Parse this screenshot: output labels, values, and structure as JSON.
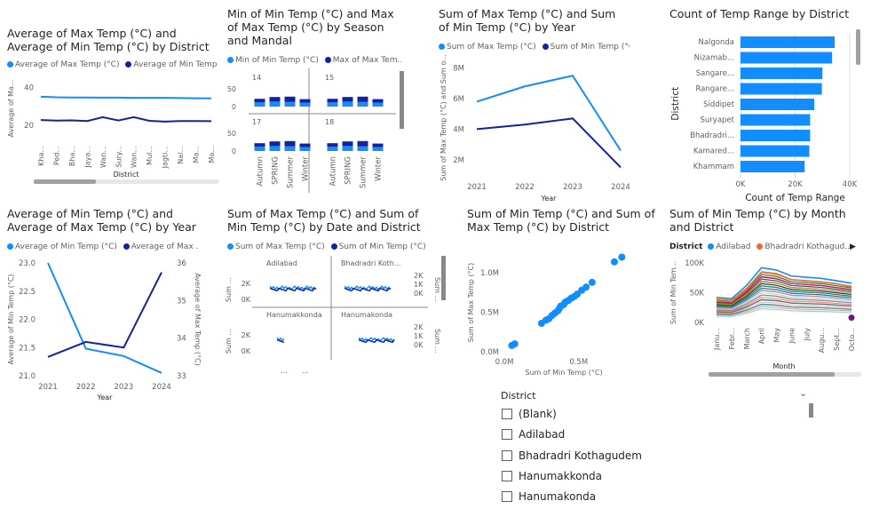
{
  "colors": {
    "light": "#118dff",
    "dark": "#12239e",
    "grey": "#c8c8c8"
  },
  "chart_data": [
    {
      "id": "c1",
      "type": "line",
      "title": "Average of Max Temp (°C) and Average of Min Temp (°C) by District",
      "legend": [
        "Average of Max Temp (°C)",
        "Average of Min Temp ..."
      ],
      "ylabel": "Average of Ma...",
      "xlabel": "District",
      "categories": [
        "Kha...",
        "Ped...",
        "Bha...",
        "Jaya...",
        "Wan...",
        "Sury...",
        "Wan...",
        "Mul...",
        "Jagti...",
        "Nal...",
        "Ma...",
        "Ma..."
      ],
      "yticks": [
        20,
        40
      ],
      "ylim": [
        12,
        46
      ],
      "series": [
        {
          "name": "Average of Max Temp (°C)",
          "values": [
            35.2,
            34.9,
            34.8,
            34.8,
            34.7,
            34.7,
            34.6,
            34.6,
            34.6,
            34.5,
            34.4,
            34.3
          ]
        },
        {
          "name": "Average of Min Temp ...",
          "values": [
            22.8,
            22.5,
            22.6,
            22.3,
            24.3,
            22.6,
            24.3,
            22.4,
            22.0,
            22.3,
            22.3,
            22.2
          ]
        }
      ]
    },
    {
      "id": "c2",
      "type": "bar",
      "title": "Min of Min Temp (°C) and Max of Max Temp (°C) by Season and Mandal",
      "legend": [
        "Min of Min Temp (°C)",
        "Max of Max Tem..."
      ],
      "panels": [
        "14",
        "15",
        "17",
        "18"
      ],
      "categories": [
        "Autumn",
        "SPRING",
        "Summer",
        "Winter"
      ],
      "yticks": [
        0,
        50
      ],
      "ylim": [
        0,
        60
      ],
      "series": [
        {
          "name": "Min of Min Temp (°C)",
          "values": [
            12,
            14,
            13,
            11
          ]
        },
        {
          "name": "Max of Max Tem...",
          "values": [
            37,
            42,
            43,
            36
          ]
        }
      ]
    },
    {
      "id": "c3",
      "type": "line",
      "title": "Sum of Max Temp (°C) and Sum of Min Temp (°C) by Year",
      "legend": [
        "Sum of Max Temp (°C)",
        "Sum of Min Temp (°C)"
      ],
      "ylabel": "Sum of Max Temp (°C) and Sum o...",
      "xlabel": "Year",
      "categories": [
        "2021",
        "2022",
        "2023",
        "2024"
      ],
      "yticks": [
        "2M",
        "4M",
        "6M",
        "8M"
      ],
      "ytickvals": [
        2,
        4,
        6,
        8
      ],
      "ylim": [
        1,
        8.5
      ],
      "series": [
        {
          "name": "Sum of Max Temp (°C)",
          "values": [
            5.8,
            6.8,
            7.5,
            2.6
          ]
        },
        {
          "name": "Sum of Min Temp (°C)",
          "values": [
            4.0,
            4.3,
            4.7,
            1.5
          ]
        }
      ]
    },
    {
      "id": "c4",
      "type": "bar",
      "title": "Count of Temp Range by District",
      "ylabel": "District",
      "xlabel": "Count of Temp Range",
      "categories": [
        "Nalgonda",
        "Nizamab...",
        "Sangare...",
        "Rangare...",
        "Siddipet",
        "Suryapet",
        "Bhadradri...",
        "Kamared...",
        "Khammam"
      ],
      "values": [
        34500,
        33500,
        30000,
        29800,
        27000,
        25500,
        25500,
        25200,
        23500
      ],
      "xticks": [
        "0K",
        "20K",
        "40K"
      ],
      "xtickvals": [
        0,
        20000,
        40000
      ],
      "xlim": [
        0,
        40000
      ]
    },
    {
      "id": "c5",
      "type": "line",
      "title": "Average of Min Temp (°C) and Average of Max Temp (°C) by Year",
      "legend": [
        "Average of Min Temp (°C)",
        "Average of Max ..."
      ],
      "ylabel": "Average of Min Temp (°C)",
      "y2label": "Average of Max Temp (°C)",
      "xlabel": "Year",
      "categories": [
        "2021",
        "2022",
        "2023",
        "2024"
      ],
      "yticks": [
        "21.0",
        "21.5",
        "22.0",
        "22.5",
        "23.0"
      ],
      "ytickvals": [
        21,
        21.5,
        22,
        22.5,
        23
      ],
      "ylim": [
        21,
        23
      ],
      "y2ticks": [
        "33",
        "34",
        "35",
        "36"
      ],
      "y2tickvals": [
        33,
        34,
        35,
        36
      ],
      "y2lim": [
        33,
        36
      ],
      "series": [
        {
          "name": "Average of Min Temp (°C)",
          "axis": "left",
          "values": [
            23.0,
            21.48,
            21.35,
            21.05
          ]
        },
        {
          "name": "Average of Max ...",
          "axis": "right",
          "values": [
            33.5,
            33.9,
            33.75,
            35.75
          ]
        }
      ]
    },
    {
      "id": "c6",
      "type": "line",
      "title": "Sum of Max Temp (°C) and Sum of Min Temp (°C) by Date and District",
      "legend": [
        "Sum of Max Temp (°C)",
        "Sum of Min Temp (°C)"
      ],
      "panels": [
        "Adilabad",
        "Bhadradri Koth...",
        "Hanumakkonda",
        "Hanumakonda"
      ],
      "ylabel": "Sum ...",
      "yticks": [
        "0K",
        "2K"
      ],
      "y2ticks": [
        "0K",
        "1K",
        "2K"
      ],
      "xticks": [
        "...",
        "..."
      ]
    },
    {
      "id": "c7",
      "type": "scatter",
      "title": "Sum of Min Temp (°C) and Sum of Max Temp (°C) by District",
      "xlabel": "Sum of Min Temp (°C)",
      "ylabel": "Sum of Max Temp (°C)",
      "xticks": [
        "0.0M",
        "0.5M"
      ],
      "xtickvals": [
        0,
        0.5
      ],
      "xlim": [
        0,
        0.8
      ],
      "yticks": [
        "0.0M",
        "0.5M",
        "1.0M"
      ],
      "ytickvals": [
        0,
        0.5,
        1.0
      ],
      "ylim": [
        0,
        1.25
      ],
      "points": [
        [
          0.05,
          0.08
        ],
        [
          0.07,
          0.1
        ],
        [
          0.25,
          0.36
        ],
        [
          0.28,
          0.4
        ],
        [
          0.3,
          0.42
        ],
        [
          0.32,
          0.46
        ],
        [
          0.34,
          0.49
        ],
        [
          0.36,
          0.52
        ],
        [
          0.37,
          0.55
        ],
        [
          0.38,
          0.58
        ],
        [
          0.4,
          0.6
        ],
        [
          0.41,
          0.63
        ],
        [
          0.43,
          0.65
        ],
        [
          0.45,
          0.68
        ],
        [
          0.47,
          0.7
        ],
        [
          0.49,
          0.73
        ],
        [
          0.52,
          0.78
        ],
        [
          0.55,
          0.82
        ],
        [
          0.59,
          0.88
        ],
        [
          0.74,
          1.14
        ],
        [
          0.79,
          1.2
        ]
      ]
    },
    {
      "id": "c8",
      "type": "line",
      "title": "Sum of Min Temp (°C) by Month and District",
      "legend_label": "District",
      "legend": [
        "Adilabad",
        "Bhadradri Kothagud..."
      ],
      "legend_colors": [
        "#118dff",
        "#e66c37"
      ],
      "ylabel": "Sum of Min Tem...",
      "xlabel": "Month",
      "categories": [
        "Janu...",
        "Febr...",
        "March",
        "April",
        "May",
        "June",
        "July",
        "Augu...",
        "Sept...",
        "Octo..."
      ],
      "yticks": [
        "0K",
        "50K",
        "100K"
      ],
      "ytickvals": [
        0,
        50,
        100
      ],
      "ylim": [
        0,
        100
      ],
      "series": [
        {
          "name": "Adilabad",
          "values": [
            42,
            40,
            62,
            92,
            88,
            78,
            76,
            74,
            70,
            66
          ]
        },
        {
          "name": "Bhadradri Kothagud...",
          "values": [
            36,
            35,
            55,
            85,
            82,
            72,
            70,
            68,
            65,
            60
          ]
        }
      ]
    }
  ],
  "slicer": {
    "title": "District",
    "items": [
      "(Blank)",
      "Adilabad",
      "Bhadradri Kothagudem",
      "Hanumakkonda",
      "Hanumakonda"
    ]
  }
}
